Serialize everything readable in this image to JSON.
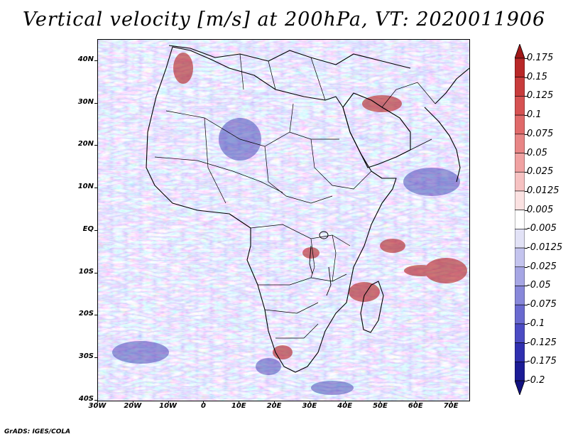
{
  "title": "Vertical velocity [m/s] at 200hPa, VT: 2020011906",
  "credit": "GrADS: IGES/COLA",
  "map": {
    "region": "Africa and Indian Ocean",
    "lon_range": [
      -30,
      75
    ],
    "lat_range": [
      -40,
      45
    ],
    "lat_labels": [
      "40N",
      "30N",
      "20N",
      "10N",
      "EQ",
      "10S",
      "20S",
      "30S",
      "40S"
    ],
    "lon_labels": [
      "30W",
      "20W",
      "10W",
      "0",
      "10E",
      "20E",
      "30E",
      "40E",
      "50E",
      "60E",
      "70E"
    ]
  },
  "colorbar": {
    "labels": [
      "0.175",
      "0.15",
      "0.125",
      "0.1",
      "0.075",
      "0.05",
      "0.025",
      "0.0125",
      "0.005",
      "-0.005",
      "-0.0125",
      "-0.025",
      "-0.05",
      "-0.075",
      "-0.1",
      "-0.125",
      "-0.175",
      "-0.2"
    ],
    "colors": [
      "#a01818",
      "#b82828",
      "#c83c3c",
      "#d65252",
      "#e06a6a",
      "#e88686",
      "#f0a2a2",
      "#f6c2c2",
      "#fbe2e2",
      "#ffffff",
      "#e2e2f6",
      "#c4c4ee",
      "#a6a6e4",
      "#8888da",
      "#6a6ad0",
      "#4c4cc4",
      "#3030b0",
      "#1c1c96",
      "#121280"
    ]
  },
  "colors": {
    "positive": "#c83030",
    "negative": "#4848c8",
    "land_border": "#000000"
  }
}
